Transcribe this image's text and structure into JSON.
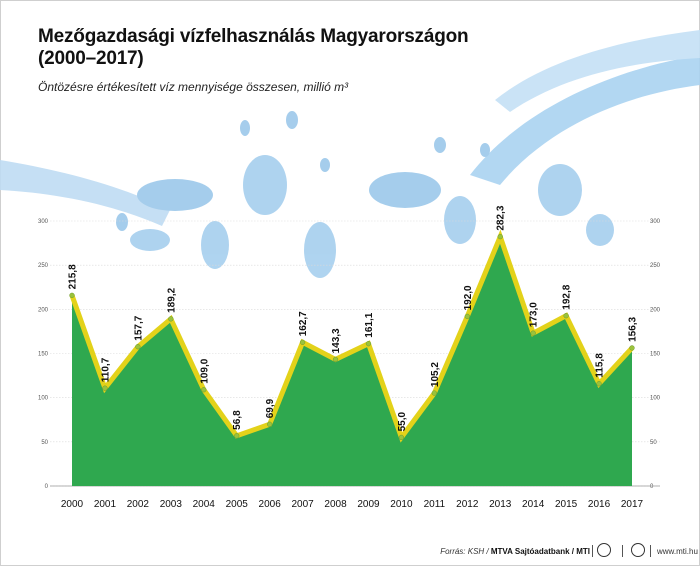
{
  "title": {
    "line1": "Mezőgazdasági vízfelhasználás Magyarországon",
    "line2": "(2000–2017)"
  },
  "subtitle": "Öntözésre értékesített víz mennyisége összesen, millió m³",
  "footer": {
    "source_prefix": "Forrás: KSH / ",
    "source_bold": "MTVA Sajtóadatbank / MTI",
    "site": "www.mti.hu"
  },
  "colors": {
    "area": "#2fa84f",
    "line": "#e3d21a",
    "marker": "#9ac23c",
    "water": "#9cc8ea"
  },
  "chart_data": {
    "type": "area",
    "x": [
      "2000",
      "2001",
      "2002",
      "2003",
      "2004",
      "2005",
      "2006",
      "2007",
      "2008",
      "2009",
      "2010",
      "2011",
      "2012",
      "2013",
      "2014",
      "2015",
      "2016",
      "2017"
    ],
    "values": [
      215.8,
      110.7,
      157.7,
      189.2,
      109.0,
      56.8,
      69.9,
      162.7,
      143.3,
      161.1,
      55.0,
      105.2,
      192.0,
      282.3,
      173.0,
      192.8,
      115.8,
      156.3
    ],
    "labels": [
      "215,8",
      "110,7",
      "157,7",
      "189,2",
      "109,0",
      "56,8",
      "69,9",
      "162,7",
      "143,3",
      "161,1",
      "55,0",
      "105,2",
      "192,0",
      "282,3",
      "173,0",
      "192,8",
      "115,8",
      "156,3"
    ],
    "yticks": [
      "0",
      "50",
      "100",
      "150",
      "200",
      "250",
      "300"
    ],
    "ylim": [
      0,
      300
    ],
    "grid": true
  }
}
